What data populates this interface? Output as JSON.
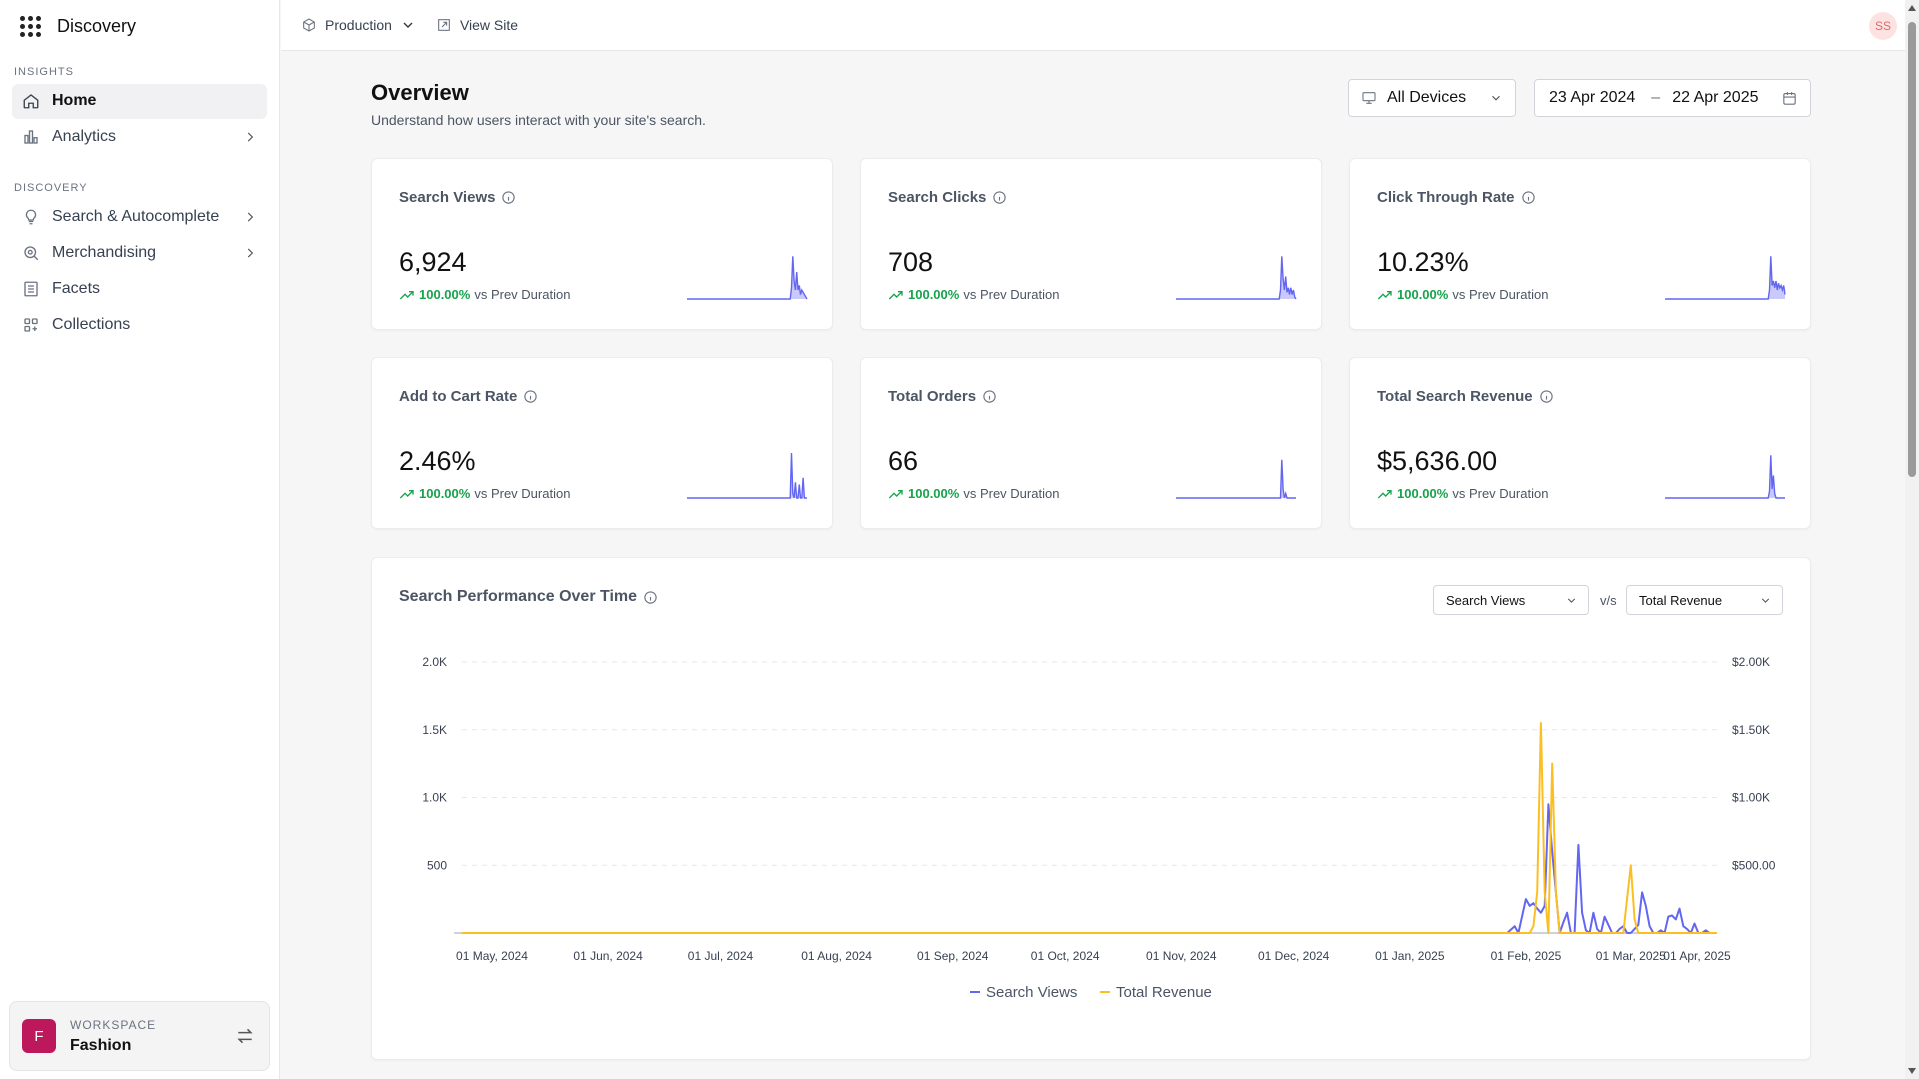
{
  "app": {
    "title": "Discovery"
  },
  "sidebar": {
    "insights_label": "INSIGHTS",
    "discovery_label": "DISCOVERY",
    "insights_items": [
      {
        "label": "Home",
        "icon": "home-icon",
        "active": true
      },
      {
        "label": "Analytics",
        "icon": "chart-icon",
        "has_submenu": true
      }
    ],
    "discovery_items": [
      {
        "label": "Search & Autocomplete",
        "icon": "lightbulb-icon",
        "has_submenu": true
      },
      {
        "label": "Merchandising",
        "icon": "search-badge-icon",
        "has_submenu": true
      },
      {
        "label": "Facets",
        "icon": "list-icon"
      },
      {
        "label": "Collections",
        "icon": "collections-icon"
      }
    ],
    "workspace": {
      "label": "WORKSPACE",
      "name": "Fashion",
      "avatar": "F"
    }
  },
  "topbar": {
    "environment": "Production",
    "view_site": "View Site",
    "user_initials": "SS"
  },
  "header": {
    "title": "Overview",
    "subtitle": "Understand how users interact with your site's search.",
    "device_filter": "All Devices",
    "date_from": "23 Apr 2024",
    "date_sep": "–",
    "date_to": "22 Apr 2025"
  },
  "metrics": [
    {
      "title": "Search Views",
      "value": "6,924",
      "change": "100.00%",
      "change_label": "vs Prev Duration"
    },
    {
      "title": "Search Clicks",
      "value": "708",
      "change": "100.00%",
      "change_label": "vs Prev Duration"
    },
    {
      "title": "Click Through Rate",
      "value": "10.23%",
      "change": "100.00%",
      "change_label": "vs Prev Duration"
    },
    {
      "title": "Add to Cart Rate",
      "value": "2.46%",
      "change": "100.00%",
      "change_label": "vs Prev Duration"
    },
    {
      "title": "Total Orders",
      "value": "66",
      "change": "100.00%",
      "change_label": "vs Prev Duration"
    },
    {
      "title": "Total Search Revenue",
      "value": "$5,636.00",
      "change": "100.00%",
      "change_label": "vs Prev Duration"
    }
  ],
  "performance": {
    "title": "Search Performance Over Time",
    "left_metric": "Search Views",
    "vs_label": "v/s",
    "right_metric": "Total Revenue"
  },
  "colors": {
    "views": "#6366f1",
    "revenue": "#fbbf24",
    "positive": "#16a34a"
  },
  "chart_data": {
    "type": "line",
    "title": "Search Performance Over Time",
    "x": [
      "01 May, 2024",
      "01 Jun, 2024",
      "01 Jul, 2024",
      "01 Aug, 2024",
      "01 Sep, 2024",
      "01 Oct, 2024",
      "01 Nov, 2024",
      "01 Dec, 2024",
      "01 Jan, 2025",
      "01 Feb, 2025",
      "01 Mar, 2025",
      "01 Apr, 2025"
    ],
    "y_left_ticks": [
      "2.0K",
      "1.5K",
      "1.0K",
      "500"
    ],
    "y_right_ticks": [
      "$2.00K",
      "$1.50K",
      "$1.00K",
      "$500.00"
    ],
    "ylim_left": [
      0,
      2000
    ],
    "ylim_right": [
      0,
      2000
    ],
    "series": [
      {
        "name": "Search Views",
        "axis": "left",
        "points": [
          [
            0,
            0
          ],
          [
            279,
            0
          ],
          [
            281,
            50
          ],
          [
            282,
            0
          ],
          [
            284,
            250
          ],
          [
            285,
            200
          ],
          [
            286,
            220
          ],
          [
            287,
            180
          ],
          [
            288,
            150
          ],
          [
            289,
            200
          ],
          [
            290,
            950
          ],
          [
            291,
            600
          ],
          [
            292,
            300
          ],
          [
            293,
            0
          ],
          [
            294,
            80
          ],
          [
            295,
            150
          ],
          [
            296,
            0
          ],
          [
            297,
            0
          ],
          [
            298,
            650
          ],
          [
            299,
            150
          ],
          [
            300,
            20
          ],
          [
            301,
            0
          ],
          [
            302,
            150
          ],
          [
            303,
            30
          ],
          [
            304,
            0
          ],
          [
            305,
            120
          ],
          [
            306,
            60
          ],
          [
            307,
            0
          ],
          [
            308,
            0
          ],
          [
            309,
            30
          ],
          [
            310,
            50
          ],
          [
            311,
            0
          ],
          [
            312,
            0
          ],
          [
            313,
            30
          ],
          [
            314,
            60
          ],
          [
            315,
            300
          ],
          [
            316,
            200
          ],
          [
            317,
            50
          ],
          [
            318,
            0
          ],
          [
            319,
            0
          ],
          [
            320,
            20
          ],
          [
            321,
            0
          ],
          [
            322,
            120
          ],
          [
            323,
            130
          ],
          [
            324,
            100
          ],
          [
            325,
            180
          ],
          [
            326,
            50
          ],
          [
            327,
            30
          ],
          [
            328,
            0
          ],
          [
            329,
            70
          ],
          [
            330,
            0
          ],
          [
            331,
            0
          ],
          [
            332,
            20
          ],
          [
            333,
            0
          ],
          [
            335,
            0
          ]
        ]
      },
      {
        "name": "Total Revenue",
        "axis": "right",
        "points": [
          [
            0,
            0
          ],
          [
            285,
            0
          ],
          [
            286,
            50
          ],
          [
            287,
            300
          ],
          [
            288,
            1550
          ],
          [
            289,
            300
          ],
          [
            290,
            0
          ],
          [
            291,
            1250
          ],
          [
            292,
            300
          ],
          [
            293,
            0
          ],
          [
            310,
            0
          ],
          [
            312,
            500
          ],
          [
            313,
            100
          ],
          [
            314,
            0
          ],
          [
            335,
            0
          ]
        ]
      }
    ],
    "legend": [
      "Search Views",
      "Total Revenue"
    ],
    "legend_position": "bottom"
  },
  "sparklines": [
    [
      0,
      0,
      0,
      0,
      0,
      0,
      0,
      0,
      0,
      0,
      0,
      0,
      0,
      0,
      0,
      0,
      0,
      0,
      0,
      0,
      0,
      0,
      0,
      0,
      0,
      0,
      0,
      0,
      0,
      0,
      0,
      0,
      0,
      0,
      0,
      0,
      0,
      0,
      0,
      0,
      0,
      0,
      0,
      0,
      0,
      0,
      0,
      0,
      0,
      0,
      0,
      0,
      0,
      0,
      0,
      0,
      0,
      0,
      0,
      0,
      0,
      0,
      0,
      0,
      0,
      0,
      0,
      0,
      0,
      0,
      0,
      0,
      0,
      0,
      0,
      0,
      0,
      0,
      0,
      0,
      0,
      0.25,
      0.95,
      0.4,
      0.2,
      0.6,
      0.2,
      0.3,
      0.1,
      0.2,
      0.15,
      0.1,
      0.05,
      0
    ],
    [
      0,
      0,
      0,
      0,
      0,
      0,
      0,
      0,
      0,
      0,
      0,
      0,
      0,
      0,
      0,
      0,
      0,
      0,
      0,
      0,
      0,
      0,
      0,
      0,
      0,
      0,
      0,
      0,
      0,
      0,
      0,
      0,
      0,
      0,
      0,
      0,
      0,
      0,
      0,
      0,
      0,
      0,
      0,
      0,
      0,
      0,
      0,
      0,
      0,
      0,
      0,
      0,
      0,
      0,
      0,
      0,
      0,
      0,
      0,
      0,
      0,
      0,
      0,
      0,
      0,
      0,
      0,
      0,
      0,
      0,
      0,
      0,
      0,
      0,
      0,
      0,
      0,
      0,
      0,
      0,
      0,
      0.2,
      0.95,
      0.45,
      0.2,
      0.5,
      0.15,
      0.25,
      0.1,
      0.25,
      0.1,
      0.2,
      0.05,
      0
    ],
    [
      0,
      0,
      0,
      0,
      0,
      0,
      0,
      0,
      0,
      0,
      0,
      0,
      0,
      0,
      0,
      0,
      0,
      0,
      0,
      0,
      0,
      0,
      0,
      0,
      0,
      0,
      0,
      0,
      0,
      0,
      0,
      0,
      0,
      0,
      0,
      0,
      0,
      0,
      0,
      0,
      0,
      0,
      0,
      0,
      0,
      0,
      0,
      0,
      0,
      0,
      0,
      0,
      0,
      0,
      0,
      0,
      0,
      0,
      0,
      0,
      0,
      0,
      0,
      0,
      0,
      0,
      0,
      0,
      0,
      0,
      0,
      0,
      0,
      0,
      0,
      0,
      0,
      0,
      0,
      0,
      0,
      0.2,
      0.95,
      0.3,
      0.4,
      0.25,
      0.4,
      0.2,
      0.35,
      0.25,
      0.3,
      0.2,
      0.3,
      0.1
    ],
    [
      0,
      0,
      0,
      0,
      0,
      0,
      0,
      0,
      0,
      0,
      0,
      0,
      0,
      0,
      0,
      0,
      0,
      0,
      0,
      0,
      0,
      0,
      0,
      0,
      0,
      0,
      0,
      0,
      0,
      0,
      0,
      0,
      0,
      0,
      0,
      0,
      0,
      0,
      0,
      0,
      0,
      0,
      0,
      0,
      0,
      0,
      0,
      0,
      0,
      0,
      0,
      0,
      0,
      0,
      0,
      0,
      0,
      0,
      0,
      0,
      0,
      0,
      0,
      0,
      0,
      0,
      0,
      0,
      0,
      0,
      0,
      0,
      0,
      0,
      0,
      0,
      0,
      0,
      0,
      0,
      0,
      1.0,
      0.1,
      0,
      0.35,
      0,
      0,
      0.3,
      0,
      0,
      0.45,
      0,
      0,
      0
    ],
    [
      0,
      0,
      0,
      0,
      0,
      0,
      0,
      0,
      0,
      0,
      0,
      0,
      0,
      0,
      0,
      0,
      0,
      0,
      0,
      0,
      0,
      0,
      0,
      0,
      0,
      0,
      0,
      0,
      0,
      0,
      0,
      0,
      0,
      0,
      0,
      0,
      0,
      0,
      0,
      0,
      0,
      0,
      0,
      0,
      0,
      0,
      0,
      0,
      0,
      0,
      0,
      0,
      0,
      0,
      0,
      0,
      0,
      0,
      0,
      0,
      0,
      0,
      0,
      0,
      0,
      0,
      0,
      0,
      0,
      0,
      0,
      0,
      0,
      0,
      0,
      0,
      0,
      0,
      0,
      0,
      0,
      0,
      0.85,
      0.2,
      0,
      0.1,
      0,
      0,
      0,
      0,
      0,
      0,
      0,
      0
    ],
    [
      0,
      0,
      0,
      0,
      0,
      0,
      0,
      0,
      0,
      0,
      0,
      0,
      0,
      0,
      0,
      0,
      0,
      0,
      0,
      0,
      0,
      0,
      0,
      0,
      0,
      0,
      0,
      0,
      0,
      0,
      0,
      0,
      0,
      0,
      0,
      0,
      0,
      0,
      0,
      0,
      0,
      0,
      0,
      0,
      0,
      0,
      0,
      0,
      0,
      0,
      0,
      0,
      0,
      0,
      0,
      0,
      0,
      0,
      0,
      0,
      0,
      0,
      0,
      0,
      0,
      0,
      0,
      0,
      0,
      0,
      0,
      0,
      0,
      0,
      0,
      0,
      0,
      0,
      0,
      0,
      0,
      0.15,
      0.95,
      0.2,
      0.5,
      0.1,
      0,
      0,
      0,
      0,
      0,
      0,
      0,
      0
    ]
  ]
}
